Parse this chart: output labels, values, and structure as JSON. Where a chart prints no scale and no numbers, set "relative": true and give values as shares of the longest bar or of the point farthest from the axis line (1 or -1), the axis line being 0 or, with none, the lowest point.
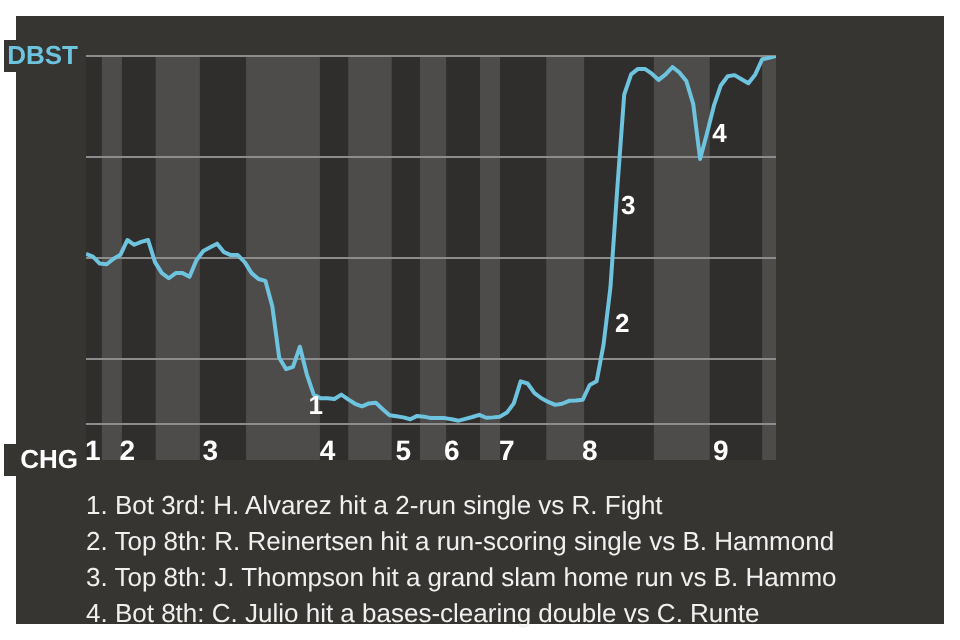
{
  "chart_data": {
    "type": "line",
    "relative": true,
    "categories": [
      null,
      "1",
      null,
      null,
      null,
      null,
      "2",
      null,
      null,
      null,
      null,
      null,
      null,
      null,
      null,
      null,
      null,
      null,
      "3",
      null,
      null,
      null,
      null,
      null,
      null,
      null,
      null,
      null,
      null,
      null,
      null,
      null,
      null,
      null,
      null,
      "4",
      null,
      null,
      null,
      null,
      null,
      null,
      null,
      null,
      null,
      null,
      "5",
      null,
      null,
      null,
      null,
      null,
      null,
      "6",
      null,
      null,
      null,
      null,
      null,
      null,
      null,
      "7",
      null,
      null,
      null,
      null,
      null,
      null,
      null,
      null,
      null,
      null,
      null,
      "8",
      null,
      null,
      null,
      null,
      null,
      null,
      null,
      null,
      null,
      null,
      null,
      null,
      null,
      null,
      null,
      null,
      null,
      null,
      "9",
      null,
      null,
      null,
      null,
      null,
      null,
      null,
      null
    ],
    "series": [
      {
        "color": "#6ec3de",
        "values": [
          0.462,
          0.455,
          0.436,
          0.434,
          0.449,
          0.46,
          0.5,
          0.487,
          0.495,
          0.5,
          0.44,
          0.41,
          0.396,
          0.41,
          0.41,
          0.4,
          0.445,
          0.47,
          0.48,
          0.49,
          0.467,
          0.459,
          0.459,
          0.44,
          0.41,
          0.394,
          0.389,
          0.32,
          0.18,
          0.149,
          0.155,
          0.21,
          0.135,
          0.08,
          0.07,
          0.07,
          0.068,
          0.08,
          0.067,
          0.055,
          0.048,
          0.056,
          0.058,
          0.04,
          0.024,
          0.021,
          0.018,
          0.013,
          0.022,
          0.02,
          0.016,
          0.016,
          0.016,
          0.013,
          0.009,
          0.014,
          0.019,
          0.025,
          0.017,
          0.018,
          0.02,
          0.031,
          0.056,
          0.116,
          0.11,
          0.084,
          0.07,
          0.06,
          0.052,
          0.055,
          0.063,
          0.064,
          0.066,
          0.106,
          0.116,
          0.215,
          0.37,
          0.64,
          0.895,
          0.95,
          0.965,
          0.965,
          0.952,
          0.935,
          0.95,
          0.97,
          0.955,
          0.932,
          0.87,
          0.72,
          0.79,
          0.865,
          0.92,
          0.945,
          0.948,
          0.937,
          0.926,
          0.95,
          0.991,
          0.995,
          1
        ]
      }
    ],
    "annotations": [
      "DBST",
      "CHG",
      "1",
      "2",
      "3",
      "4",
      "1. Bot 3rd: H. Alvarez hit a 2-run single vs R. Fight",
      "2. Top 8th: R. Reinertsen hit a run-scoring single vs B. Hammond",
      "3. Top 8th: J. Thompson hit a grand slam home run vs B. Hammo",
      "4. Bot 8th: C. Julio hit a bases-clearing double vs C. Runte"
    ]
  }
}
